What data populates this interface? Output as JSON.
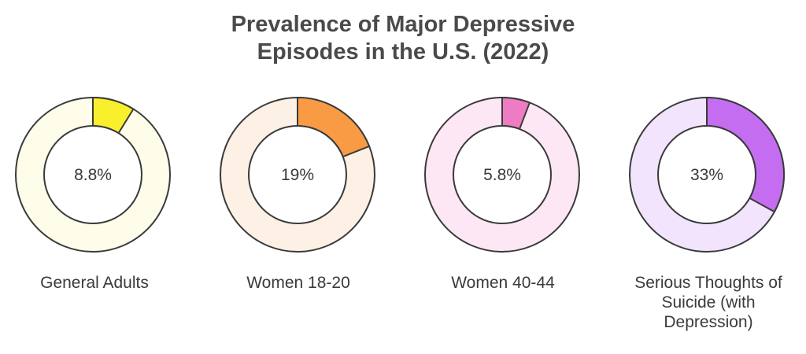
{
  "title": {
    "line1": "Prevalence of Major Depressive",
    "line2": "Episodes in the U.S. (2022)"
  },
  "chart_data": [
    {
      "type": "pie",
      "label": "General Adults",
      "value": 8.8,
      "display": "8.8%",
      "colors": {
        "fill": "#f9ef2c",
        "track": "#fefde9"
      }
    },
    {
      "type": "pie",
      "label": "Women 18-20",
      "value": 19,
      "display": "19%",
      "colors": {
        "fill": "#f99b45",
        "track": "#fdf0e4"
      }
    },
    {
      "type": "pie",
      "label": "Women 40-44",
      "value": 5.8,
      "display": "5.8%",
      "colors": {
        "fill": "#ee7cc2",
        "track": "#fde7f4"
      }
    },
    {
      "type": "pie",
      "label": "Serious Thoughts of Suicide (with Depression)",
      "value": 33,
      "display": "33%",
      "colors": {
        "fill": "#c56df0",
        "track": "#f1e4fc"
      }
    }
  ]
}
